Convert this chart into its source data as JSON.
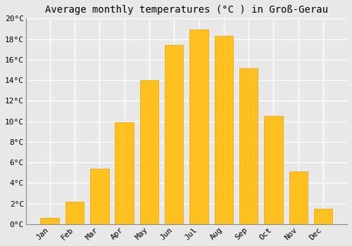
{
  "title": "Average monthly temperatures (°C ) in Groß-Gerau",
  "months": [
    "Jan",
    "Feb",
    "Mar",
    "Apr",
    "May",
    "Jun",
    "Jul",
    "Aug",
    "Sep",
    "Oct",
    "Nov",
    "Dec"
  ],
  "values": [
    0.6,
    2.2,
    5.4,
    9.9,
    14.0,
    17.4,
    18.9,
    18.3,
    15.2,
    10.5,
    5.1,
    1.5
  ],
  "bar_color": "#FFC020",
  "bar_edge_color": "#E8A000",
  "ylim": [
    0,
    20
  ],
  "yticks": [
    0,
    2,
    4,
    6,
    8,
    10,
    12,
    14,
    16,
    18,
    20
  ],
  "ytick_labels": [
    "0°C",
    "2°C",
    "4°C",
    "6°C",
    "8°C",
    "10°C",
    "12°C",
    "14°C",
    "16°C",
    "18°C",
    "20°C"
  ],
  "background_color": "#e8e8e8",
  "plot_bg_color": "#e8e8e8",
  "grid_color": "#ffffff",
  "title_fontsize": 10,
  "tick_fontsize": 8,
  "bar_width": 0.75
}
